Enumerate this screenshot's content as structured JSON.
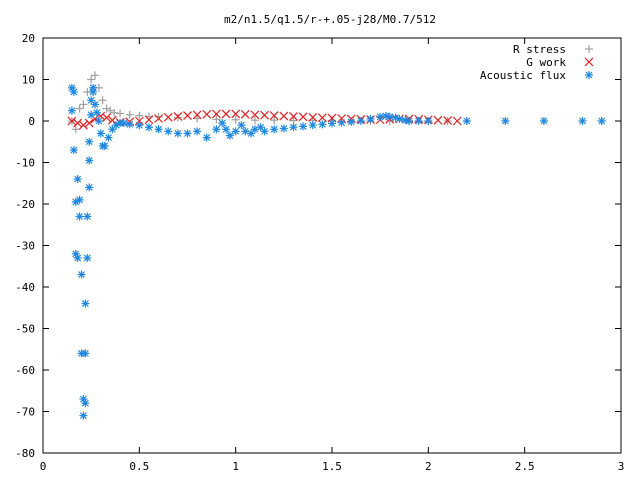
{
  "chart_data": {
    "type": "scatter",
    "title": "m2/n1.5/q1.5/r-+.05-j28/M0.7/512",
    "xlabel": "",
    "ylabel": "",
    "xlim": [
      0,
      3
    ],
    "ylim": [
      -80,
      20
    ],
    "xticks": [
      0,
      0.5,
      1,
      1.5,
      2,
      2.5,
      3
    ],
    "xtick_labels": [
      "0",
      "0.5",
      "1",
      "1.5",
      "2",
      "2.5",
      "3"
    ],
    "yticks": [
      -80,
      -70,
      -60,
      -50,
      -40,
      -30,
      -20,
      -10,
      0,
      10,
      20
    ],
    "ytick_labels": [
      "-80",
      "-70",
      "-60",
      "-50",
      "-40",
      "-30",
      "-20",
      "-10",
      "0",
      "10",
      "20"
    ],
    "grid": false,
    "legend_position": "top-right",
    "series": [
      {
        "name": "R stress",
        "marker": "plus",
        "color": "#a0a0a0",
        "x": [
          0.15,
          0.17,
          0.19,
          0.21,
          0.23,
          0.25,
          0.27,
          0.29,
          0.31,
          0.33,
          0.35,
          0.37,
          0.4,
          0.45,
          0.5,
          0.55,
          0.6,
          0.7,
          0.8,
          0.9,
          1.0,
          1.1,
          1.2,
          1.3,
          1.4,
          1.5,
          1.6,
          1.7,
          1.8,
          1.9,
          2.0,
          2.1,
          2.2,
          2.4,
          2.6,
          2.8,
          2.9
        ],
        "y": [
          0,
          -2,
          3,
          4,
          7,
          10,
          11,
          8,
          5,
          3,
          2.5,
          2,
          1.8,
          1.5,
          1.3,
          1.1,
          1.0,
          0.8,
          0.6,
          0.4,
          0.3,
          0.2,
          0.2,
          0.1,
          0.1,
          0.1,
          0,
          0,
          0,
          0,
          0,
          0,
          0,
          0,
          0,
          0,
          0
        ]
      },
      {
        "name": "G work",
        "marker": "cross",
        "color": "#e02020",
        "x": [
          0.15,
          0.18,
          0.21,
          0.24,
          0.27,
          0.3,
          0.33,
          0.36,
          0.4,
          0.45,
          0.5,
          0.55,
          0.6,
          0.65,
          0.7,
          0.75,
          0.8,
          0.85,
          0.9,
          0.95,
          1.0,
          1.05,
          1.1,
          1.15,
          1.2,
          1.25,
          1.3,
          1.35,
          1.4,
          1.45,
          1.5,
          1.55,
          1.6,
          1.65,
          1.7,
          1.75,
          1.8,
          1.85,
          1.9,
          1.95,
          2.0,
          2.05,
          2.1,
          2.15
        ],
        "y": [
          0,
          -0.5,
          -1,
          -0.5,
          0.5,
          1.2,
          0.8,
          0.2,
          -0.3,
          -0.2,
          0,
          0.3,
          0.6,
          0.9,
          1.1,
          1.3,
          1.5,
          1.6,
          1.7,
          1.7,
          1.7,
          1.6,
          1.5,
          1.4,
          1.3,
          1.2,
          1.1,
          1.0,
          0.9,
          0.8,
          0.7,
          0.6,
          0.5,
          0.4,
          0.3,
          0.3,
          0.4,
          0.5,
          0.5,
          0.4,
          0.3,
          0.2,
          0.1,
          0
        ]
      },
      {
        "name": "Acoustic flux",
        "marker": "star",
        "color": "#1f88e0",
        "x": [
          0.15,
          0.15,
          0.16,
          0.16,
          0.17,
          0.17,
          0.18,
          0.18,
          0.19,
          0.19,
          0.2,
          0.2,
          0.21,
          0.21,
          0.22,
          0.22,
          0.22,
          0.23,
          0.23,
          0.24,
          0.24,
          0.24,
          0.25,
          0.25,
          0.26,
          0.26,
          0.27,
          0.28,
          0.29,
          0.3,
          0.31,
          0.32,
          0.34,
          0.36,
          0.38,
          0.4,
          0.42,
          0.45,
          0.5,
          0.55,
          0.6,
          0.65,
          0.7,
          0.75,
          0.8,
          0.85,
          0.9,
          0.93,
          0.95,
          0.97,
          1.0,
          1.03,
          1.05,
          1.08,
          1.1,
          1.13,
          1.15,
          1.2,
          1.25,
          1.3,
          1.35,
          1.4,
          1.45,
          1.5,
          1.55,
          1.6,
          1.65,
          1.7,
          1.75,
          1.78,
          1.8,
          1.83,
          1.85,
          1.88,
          1.9,
          1.95,
          2.0,
          2.2,
          2.4,
          2.6,
          2.8,
          2.9
        ],
        "y": [
          2.5,
          8,
          7,
          -7,
          -19.5,
          -32,
          -33,
          -14,
          -23,
          -19,
          -37,
          -56,
          -71,
          -67,
          -56,
          -44,
          -68,
          -23,
          -33,
          -16,
          -9.5,
          -5,
          1.5,
          5,
          8,
          7,
          4,
          2,
          0,
          -3,
          -6,
          -6,
          -4,
          -2,
          -1,
          -0.5,
          -0.5,
          -0.8,
          -1,
          -1.5,
          -2,
          -2.5,
          -3,
          -3,
          -2.5,
          -4,
          -2,
          -0.5,
          -2,
          -3.5,
          -2.5,
          -1,
          -2.5,
          -3,
          -2,
          -1.5,
          -2.5,
          -2,
          -1.8,
          -1.5,
          -1.3,
          -1,
          -0.8,
          -0.6,
          -0.4,
          -0.2,
          0,
          0.5,
          1,
          1.2,
          1,
          0.8,
          0.5,
          0.2,
          0,
          0,
          0,
          0,
          0,
          0,
          0,
          0
        ]
      }
    ]
  }
}
